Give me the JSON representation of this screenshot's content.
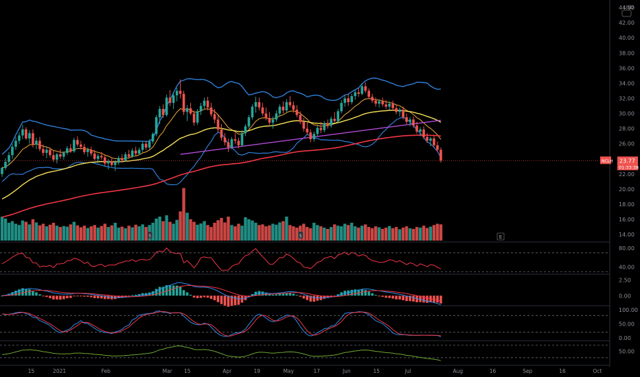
{
  "chart_data": {
    "type": "candlestick",
    "symbol": "NCLH",
    "currency": "USD",
    "price_axis": {
      "ticks": [
        14,
        16,
        18,
        20,
        22,
        24,
        26,
        28,
        30,
        32,
        34,
        36,
        38,
        40,
        42,
        44
      ],
      "tick_labels": [
        "14.00",
        "16.00",
        "18.00",
        "20.00",
        "22.00",
        "24.00",
        "26.00",
        "28.00",
        "30.00",
        "32.00",
        "34.00",
        "36.00",
        "38.00",
        "40.00",
        "42.00",
        "44.00"
      ],
      "range": [
        13.2,
        45
      ]
    },
    "last_price": {
      "value": 23.77,
      "label": "23.77",
      "countdown": "01:33:38"
    },
    "x_axis": {
      "labels": [
        "15",
        "2021",
        "Feb",
        "Mar",
        "15",
        "Apr",
        "19",
        "May",
        "17",
        "Jun",
        "15",
        "Jul",
        "Aug",
        "16",
        "Sep",
        "16",
        "Oct"
      ],
      "positions": [
        18,
        35,
        63,
        100,
        112,
        136,
        154,
        173,
        190,
        208,
        226,
        245,
        275,
        296,
        317,
        338,
        359
      ]
    },
    "candles_ohlc": [
      [
        22.0,
        23.0,
        21.6,
        22.8
      ],
      [
        22.8,
        24.1,
        22.5,
        23.6
      ],
      [
        23.6,
        24.9,
        23.2,
        24.5
      ],
      [
        24.5,
        26.0,
        24.0,
        25.6
      ],
      [
        25.6,
        26.9,
        25.2,
        26.4
      ],
      [
        26.4,
        27.5,
        26.0,
        27.1
      ],
      [
        27.1,
        28.5,
        26.6,
        27.9
      ],
      [
        27.9,
        28.2,
        26.5,
        26.7
      ],
      [
        26.7,
        27.8,
        26.0,
        27.4
      ],
      [
        27.4,
        27.9,
        25.5,
        25.9
      ],
      [
        25.9,
        26.8,
        25.3,
        26.4
      ],
      [
        26.4,
        26.9,
        25.0,
        25.3
      ],
      [
        25.3,
        25.9,
        24.4,
        24.8
      ],
      [
        24.8,
        25.6,
        24.1,
        25.2
      ],
      [
        25.2,
        25.5,
        24.2,
        24.5
      ],
      [
        24.5,
        25.1,
        23.6,
        23.9
      ],
      [
        23.9,
        24.8,
        23.4,
        24.6
      ],
      [
        24.6,
        25.3,
        24.0,
        24.3
      ],
      [
        24.3,
        25.0,
        23.9,
        24.8
      ],
      [
        24.8,
        25.7,
        24.5,
        25.4
      ],
      [
        25.4,
        26.0,
        24.8,
        25.0
      ],
      [
        25.0,
        26.8,
        24.8,
        26.5
      ],
      [
        26.5,
        27.0,
        25.6,
        25.9
      ],
      [
        25.9,
        26.4,
        25.2,
        25.6
      ],
      [
        25.6,
        26.0,
        24.6,
        24.9
      ],
      [
        24.9,
        25.5,
        24.3,
        25.2
      ],
      [
        25.2,
        25.6,
        24.4,
        24.7
      ],
      [
        24.7,
        25.2,
        23.8,
        24.0
      ],
      [
        24.0,
        24.7,
        23.4,
        24.4
      ],
      [
        24.4,
        24.9,
        23.9,
        24.2
      ],
      [
        24.2,
        24.6,
        23.1,
        23.4
      ],
      [
        23.4,
        24.0,
        22.6,
        23.7
      ],
      [
        23.7,
        24.2,
        23.0,
        23.2
      ],
      [
        23.2,
        23.8,
        22.4,
        23.5
      ],
      [
        23.5,
        24.4,
        23.2,
        24.1
      ],
      [
        24.1,
        24.6,
        23.5,
        23.8
      ],
      [
        23.8,
        24.9,
        23.6,
        24.6
      ],
      [
        24.6,
        25.2,
        24.0,
        24.3
      ],
      [
        24.3,
        25.4,
        24.1,
        25.1
      ],
      [
        25.1,
        25.6,
        24.4,
        24.7
      ],
      [
        24.7,
        25.5,
        24.5,
        25.2
      ],
      [
        25.2,
        26.3,
        24.9,
        26.0
      ],
      [
        26.0,
        26.4,
        25.2,
        25.5
      ],
      [
        25.5,
        26.6,
        25.3,
        26.3
      ],
      [
        26.3,
        27.5,
        26.0,
        27.3
      ],
      [
        27.3,
        29.8,
        27.0,
        29.5
      ],
      [
        29.5,
        31.0,
        28.6,
        30.6
      ],
      [
        30.6,
        31.2,
        29.4,
        29.8
      ],
      [
        29.8,
        32.5,
        29.6,
        32.1
      ],
      [
        32.1,
        33.1,
        31.0,
        31.4
      ],
      [
        31.4,
        32.8,
        30.6,
        32.4
      ],
      [
        32.4,
        33.4,
        31.6,
        33.0
      ],
      [
        33.0,
        34.5,
        32.0,
        32.6
      ],
      [
        32.6,
        33.0,
        29.8,
        30.2
      ],
      [
        30.2,
        31.1,
        29.0,
        30.7
      ],
      [
        30.7,
        31.4,
        29.8,
        30.0
      ],
      [
        30.0,
        30.4,
        28.4,
        28.8
      ],
      [
        28.8,
        30.6,
        28.5,
        30.3
      ],
      [
        30.3,
        31.4,
        29.8,
        31.0
      ],
      [
        31.0,
        32.1,
        30.6,
        31.7
      ],
      [
        31.7,
        32.2,
        30.4,
        30.8
      ],
      [
        30.8,
        31.4,
        29.6,
        29.9
      ],
      [
        29.9,
        30.6,
        28.7,
        29.2
      ],
      [
        29.2,
        29.8,
        27.5,
        27.9
      ],
      [
        27.9,
        28.6,
        26.4,
        26.8
      ],
      [
        26.8,
        27.4,
        25.8,
        26.2
      ],
      [
        26.2,
        26.7,
        24.9,
        25.5
      ],
      [
        25.5,
        26.9,
        25.3,
        26.6
      ],
      [
        26.6,
        27.4,
        26.0,
        26.4
      ],
      [
        26.4,
        26.8,
        25.4,
        25.8
      ],
      [
        25.8,
        27.8,
        25.6,
        27.4
      ],
      [
        27.4,
        28.6,
        27.0,
        28.3
      ],
      [
        28.3,
        29.8,
        28.0,
        29.5
      ],
      [
        29.5,
        31.2,
        29.2,
        30.9
      ],
      [
        30.9,
        32.2,
        30.1,
        31.5
      ],
      [
        31.5,
        32.1,
        30.4,
        30.8
      ],
      [
        30.8,
        31.4,
        29.7,
        30.0
      ],
      [
        30.0,
        30.8,
        29.1,
        29.4
      ],
      [
        29.4,
        30.2,
        28.5,
        28.8
      ],
      [
        28.8,
        29.6,
        28.0,
        29.2
      ],
      [
        29.2,
        30.4,
        28.9,
        30.0
      ],
      [
        30.0,
        31.2,
        29.6,
        30.9
      ],
      [
        30.9,
        31.6,
        30.0,
        30.4
      ],
      [
        30.4,
        31.9,
        30.2,
        31.5
      ],
      [
        31.5,
        32.3,
        30.8,
        31.1
      ],
      [
        31.1,
        31.6,
        30.1,
        30.5
      ],
      [
        30.5,
        31.1,
        29.5,
        29.8
      ],
      [
        29.8,
        30.3,
        28.6,
        28.9
      ],
      [
        28.9,
        29.4,
        27.6,
        28.0
      ],
      [
        28.0,
        28.8,
        27.2,
        27.5
      ],
      [
        27.5,
        27.9,
        26.2,
        26.6
      ],
      [
        26.6,
        27.6,
        26.3,
        27.3
      ],
      [
        27.3,
        28.4,
        27.0,
        28.1
      ],
      [
        28.1,
        28.9,
        27.4,
        27.8
      ],
      [
        27.8,
        29.0,
        27.5,
        28.7
      ],
      [
        28.7,
        29.2,
        28.0,
        28.4
      ],
      [
        28.4,
        29.6,
        28.1,
        29.3
      ],
      [
        29.3,
        30.2,
        28.8,
        29.0
      ],
      [
        29.0,
        30.6,
        28.7,
        30.3
      ],
      [
        30.3,
        31.8,
        30.0,
        31.4
      ],
      [
        31.4,
        32.4,
        30.9,
        32.0
      ],
      [
        32.0,
        32.6,
        31.0,
        31.5
      ],
      [
        31.5,
        32.6,
        31.2,
        32.3
      ],
      [
        32.3,
        33.1,
        31.8,
        32.8
      ],
      [
        32.8,
        33.4,
        32.2,
        32.6
      ],
      [
        32.6,
        34.0,
        32.4,
        33.6
      ],
      [
        33.6,
        34.1,
        32.7,
        33.0
      ],
      [
        33.0,
        33.3,
        31.9,
        32.2
      ],
      [
        32.2,
        32.6,
        31.4,
        31.7
      ],
      [
        31.7,
        32.1,
        30.9,
        31.3
      ],
      [
        31.3,
        31.9,
        30.8,
        31.6
      ],
      [
        31.6,
        32.1,
        30.9,
        31.2
      ],
      [
        31.2,
        31.8,
        30.6,
        30.9
      ],
      [
        30.9,
        31.6,
        30.5,
        31.3
      ],
      [
        31.3,
        31.7,
        30.4,
        30.7
      ],
      [
        30.7,
        31.2,
        29.9,
        30.2
      ],
      [
        30.2,
        30.8,
        29.6,
        30.5
      ],
      [
        30.5,
        30.9,
        29.2,
        29.5
      ],
      [
        29.5,
        30.0,
        28.6,
        28.9
      ],
      [
        28.9,
        29.5,
        28.3,
        29.2
      ],
      [
        29.2,
        29.6,
        28.1,
        28.4
      ],
      [
        28.4,
        28.9,
        27.3,
        27.6
      ],
      [
        27.6,
        28.2,
        27.0,
        27.9
      ],
      [
        27.9,
        28.3,
        26.6,
        26.9
      ],
      [
        26.9,
        27.4,
        26.1,
        26.4
      ],
      [
        26.4,
        26.9,
        25.7,
        26.7
      ],
      [
        26.7,
        27.0,
        25.5,
        25.8
      ],
      [
        25.8,
        26.3,
        24.9,
        25.2
      ],
      [
        25.2,
        25.5,
        23.5,
        23.77
      ]
    ],
    "volume": [
      0.74,
      0.68,
      0.55,
      0.6,
      0.52,
      0.48,
      0.62,
      0.58,
      0.5,
      0.66,
      0.56,
      0.47,
      0.52,
      0.44,
      0.49,
      0.55,
      0.46,
      0.42,
      0.45,
      0.43,
      0.5,
      0.58,
      0.47,
      0.41,
      0.46,
      0.39,
      0.44,
      0.48,
      0.4,
      0.45,
      0.52,
      0.42,
      0.47,
      0.55,
      0.4,
      0.43,
      0.38,
      0.46,
      0.41,
      0.49,
      0.44,
      0.5,
      0.42,
      0.48,
      0.55,
      0.68,
      0.74,
      0.6,
      0.78,
      0.58,
      0.52,
      0.64,
      0.9,
      1.62,
      0.86,
      0.66,
      0.58,
      0.49,
      0.53,
      0.6,
      0.48,
      0.42,
      0.55,
      0.63,
      0.7,
      0.56,
      0.74,
      0.48,
      0.44,
      0.52,
      0.46,
      0.72,
      0.66,
      0.62,
      0.55,
      0.48,
      0.5,
      0.44,
      0.47,
      0.52,
      0.49,
      0.56,
      0.6,
      0.74,
      0.48,
      0.44,
      0.4,
      0.46,
      0.52,
      0.42,
      0.38,
      0.55,
      0.48,
      0.44,
      0.4,
      0.36,
      0.42,
      0.5,
      0.46,
      0.44,
      0.52,
      0.48,
      0.55,
      0.44,
      0.4,
      0.46,
      0.5,
      0.42,
      0.38,
      0.44,
      0.41,
      0.36,
      0.4,
      0.45,
      0.38,
      0.42,
      0.35,
      0.4,
      0.44,
      0.38,
      0.36,
      0.42,
      0.4,
      0.46,
      0.39,
      0.43,
      0.48,
      0.52,
      0.5
    ],
    "indicator_panes": [
      {
        "name": "",
        "range": [
          25,
          90
        ],
        "ticks": [
          40,
          80
        ],
        "tick_labels": [
          "40.00",
          "80.00"
        ]
      },
      {
        "name": "",
        "range": [
          -1.6,
          3.2
        ],
        "ticks": [
          0,
          2.5
        ],
        "tick_labels": [
          "0.00",
          "2.50"
        ]
      },
      {
        "name": "",
        "range": [
          -10,
          110
        ],
        "ticks": [
          0,
          50,
          100
        ],
        "tick_labels": [
          "0.00",
          "50.00",
          "100.00"
        ]
      },
      {
        "name": "",
        "range": [
          10,
          80
        ],
        "ticks": [
          50
        ],
        "tick_labels": [
          "50.00"
        ]
      }
    ],
    "colors": {
      "up": "#26a69a",
      "down": "#ef5350",
      "bb": "#2f7fd8",
      "ema_fast": "#f2a93b",
      "ema_mid": "#f5e15a",
      "ema_slow": "#f23645",
      "trendline": "#b34bd6",
      "rsi": "#f23645",
      "macd": "#2f8df0",
      "signal": "#f23645",
      "stoch_k": "#2f8df0",
      "stoch_d": "#f23645",
      "osc": "#6da830",
      "axis_text": "#8c8f98",
      "gridline": "#787b86"
    },
    "events": {
      "earnings_marker": "E"
    }
  }
}
